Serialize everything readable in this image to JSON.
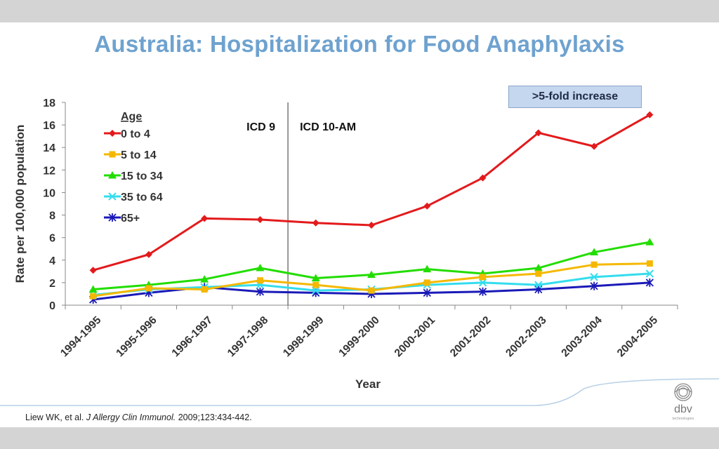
{
  "slide": {
    "title": "Australia: Hospitalization for Food Anaphylaxis",
    "callout": ">5-fold increase",
    "citation": {
      "authors": "Liew WK, et al.",
      "journal": "J Allergy Clin Immunol.",
      "details": "2009;123:434-442."
    },
    "logo_text": "dbv",
    "logo_subtext": "technologies"
  },
  "chart_data": {
    "type": "line",
    "xlabel": "Year",
    "ylabel": "Rate per 100,000 population",
    "ylim": [
      0,
      18
    ],
    "yticks": [
      0,
      2,
      4,
      6,
      8,
      10,
      12,
      14,
      16,
      18
    ],
    "categories": [
      "1994-1995",
      "1995-1996",
      "1996-1997",
      "1997-1998",
      "1998-1999",
      "1999-2000",
      "2000-2001",
      "2001-2002",
      "2002-2003",
      "2003-2004",
      "2004-2005"
    ],
    "legend_title": "Age",
    "legend_position": "top-left",
    "grid": false,
    "divider": {
      "between": [
        "1997-1998",
        "1998-1999"
      ],
      "left_label": "ICD 9",
      "right_label": "ICD 10-AM"
    },
    "series": [
      {
        "name": "0 to 4",
        "color": "#e31a1c",
        "marker": "diamond",
        "values": [
          3.1,
          4.5,
          7.7,
          7.6,
          7.3,
          7.1,
          8.8,
          11.3,
          15.3,
          14.1,
          16.9
        ]
      },
      {
        "name": "5 to 14",
        "color": "#f5b800",
        "marker": "square",
        "values": [
          0.8,
          1.5,
          1.4,
          2.2,
          1.8,
          1.3,
          2.0,
          2.5,
          2.8,
          3.6,
          3.7
        ]
      },
      {
        "name": "15 to 34",
        "color": "#22dd00",
        "marker": "triangle",
        "values": [
          1.4,
          1.8,
          2.3,
          3.3,
          2.4,
          2.7,
          3.2,
          2.8,
          3.3,
          4.7,
          5.6
        ]
      },
      {
        "name": "35 to 64",
        "color": "#33ddee",
        "marker": "x",
        "values": [
          0.9,
          1.4,
          1.6,
          1.8,
          1.3,
          1.4,
          1.8,
          2.0,
          1.8,
          2.5,
          2.8
        ]
      },
      {
        "name": "65+",
        "color": "#1a1ab8",
        "marker": "star",
        "values": [
          0.5,
          1.1,
          1.6,
          1.2,
          1.1,
          1.0,
          1.1,
          1.2,
          1.4,
          1.7,
          2.0
        ]
      }
    ]
  }
}
